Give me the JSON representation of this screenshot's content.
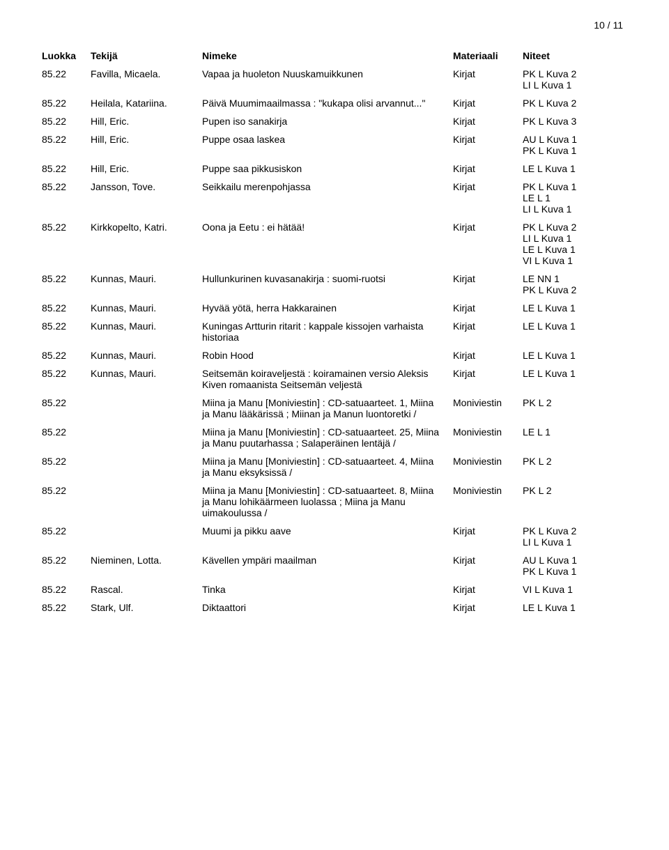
{
  "page_number": "10 / 11",
  "headers": {
    "luokka": "Luokka",
    "tekija": "Tekijä",
    "nimeke": "Nimeke",
    "materiaali": "Materiaali",
    "niteet": "Niteet"
  },
  "rows": [
    {
      "luokka": "85.22",
      "tekija": "Favilla, Micaela.",
      "nimeke": "Vapaa ja huoleton Nuuskamuikkunen",
      "materiaali": "Kirjat",
      "niteet": [
        "PK L Kuva 2",
        "LI L Kuva 1"
      ]
    },
    {
      "luokka": "85.22",
      "tekija": "Heilala, Katariina.",
      "nimeke": "Päivä Muumimaailmassa : \"kukapa olisi arvannut...\"",
      "materiaali": "Kirjat",
      "niteet": [
        "PK L Kuva 2"
      ]
    },
    {
      "luokka": "85.22",
      "tekija": "Hill, Eric.",
      "nimeke": "Pupen iso sanakirja",
      "materiaali": "Kirjat",
      "niteet": [
        "PK L Kuva 3"
      ]
    },
    {
      "luokka": "85.22",
      "tekija": "Hill, Eric.",
      "nimeke": "Puppe osaa laskea",
      "materiaali": "Kirjat",
      "niteet": [
        "AU L Kuva 1",
        "PK L Kuva 1"
      ]
    },
    {
      "luokka": "85.22",
      "tekija": "Hill, Eric.",
      "nimeke": "Puppe saa pikkusiskon",
      "materiaali": "Kirjat",
      "niteet": [
        "LE L Kuva 1"
      ]
    },
    {
      "luokka": "85.22",
      "tekija": "Jansson, Tove.",
      "nimeke": "Seikkailu merenpohjassa",
      "materiaali": "Kirjat",
      "niteet": [
        "PK L Kuva 1",
        "LE L 1",
        "LI L Kuva 1"
      ]
    },
    {
      "luokka": "85.22",
      "tekija": "Kirkkopelto, Katri.",
      "nimeke": "Oona ja Eetu : ei hätää!",
      "materiaali": "Kirjat",
      "niteet": [
        "PK L Kuva 2",
        "LI L Kuva 1",
        "LE L Kuva 1",
        "VI L Kuva 1"
      ]
    },
    {
      "luokka": "85.22",
      "tekija": "Kunnas, Mauri.",
      "nimeke": "Hullunkurinen kuvasanakirja : suomi-ruotsi",
      "materiaali": "Kirjat",
      "niteet": [
        "LE NN 1",
        "PK L Kuva 2"
      ]
    },
    {
      "luokka": "85.22",
      "tekija": "Kunnas, Mauri.",
      "nimeke": "Hyvää yötä, herra Hakkarainen",
      "materiaali": "Kirjat",
      "niteet": [
        "LE L Kuva 1"
      ]
    },
    {
      "luokka": "85.22",
      "tekija": "Kunnas, Mauri.",
      "nimeke": "Kuningas Artturin ritarit : kappale kissojen varhaista historiaa",
      "materiaali": "Kirjat",
      "niteet": [
        "LE L Kuva 1"
      ]
    },
    {
      "luokka": "85.22",
      "tekija": "Kunnas, Mauri.",
      "nimeke": "Robin Hood",
      "materiaali": "Kirjat",
      "niteet": [
        "LE L Kuva 1"
      ]
    },
    {
      "luokka": "85.22",
      "tekija": "Kunnas, Mauri.",
      "nimeke": "Seitsemän koiraveljestä : koiramainen versio Aleksis Kiven romaanista Seitsemän veljestä",
      "materiaali": "Kirjat",
      "niteet": [
        "LE L Kuva 1"
      ]
    },
    {
      "luokka": "85.22",
      "tekija": "",
      "nimeke": "Miina ja Manu [Moniviestin] : CD-satuaarteet. 1, Miina ja Manu lääkärissä ; Miinan ja Manun luontoretki /",
      "materiaali": "Moniviestin",
      "niteet": [
        "PK L 2"
      ]
    },
    {
      "luokka": "85.22",
      "tekija": "",
      "nimeke": "Miina ja Manu [Moniviestin] : CD-satuaarteet. 25, Miina ja Manu puutarhassa ; Salaperäinen lentäjä /",
      "materiaali": "Moniviestin",
      "niteet": [
        "LE L 1"
      ]
    },
    {
      "luokka": "85.22",
      "tekija": "",
      "nimeke": "Miina ja Manu [Moniviestin] : CD-satuaarteet. 4, Miina ja Manu eksyksissä /",
      "materiaali": "Moniviestin",
      "niteet": [
        "PK L 2"
      ]
    },
    {
      "luokka": "85.22",
      "tekija": "",
      "nimeke": "Miina ja Manu [Moniviestin] : CD-satuaarteet. 8, Miina ja Manu lohikäärmeen luolassa ; Miina ja Manu uimakoulussa /",
      "materiaali": "Moniviestin",
      "niteet": [
        "PK L 2"
      ]
    },
    {
      "luokka": "85.22",
      "tekija": "",
      "nimeke": "Muumi ja pikku aave",
      "materiaali": "Kirjat",
      "niteet": [
        "PK L Kuva 2",
        "LI L Kuva 1"
      ]
    },
    {
      "luokka": "85.22",
      "tekija": "Nieminen, Lotta.",
      "nimeke": "Kävellen ympäri maailman",
      "materiaali": "Kirjat",
      "niteet": [
        "AU L Kuva 1",
        "PK L Kuva 1"
      ]
    },
    {
      "luokka": "85.22",
      "tekija": "Rascal.",
      "nimeke": "Tinka",
      "materiaali": "Kirjat",
      "niteet": [
        "VI L Kuva 1"
      ]
    },
    {
      "luokka": "85.22",
      "tekija": "Stark, Ulf.",
      "nimeke": "Diktaattori",
      "materiaali": "Kirjat",
      "niteet": [
        "LE L Kuva 1"
      ]
    }
  ]
}
